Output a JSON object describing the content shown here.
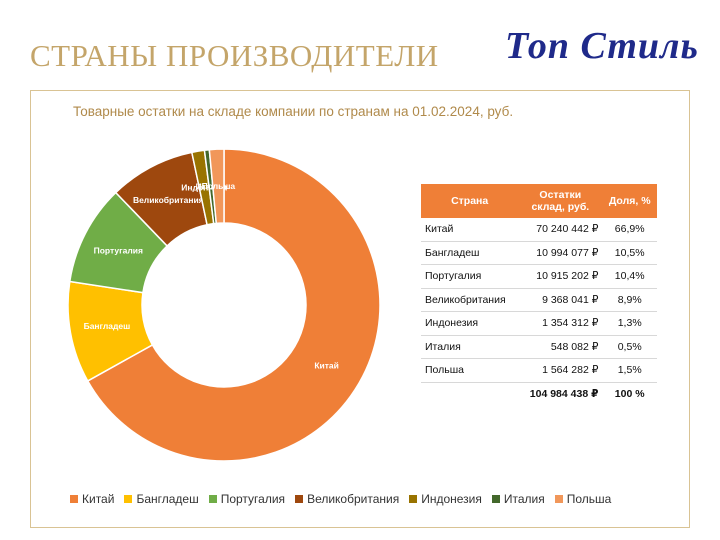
{
  "header": {
    "title": "СТРАНЫ  ПРОИЗВОДИТЕЛИ",
    "logo_text": "Топ Стиль"
  },
  "chart_data": {
    "type": "pie",
    "title": "Товарные остатки на складе компании по странам на 01.02.2024, руб.",
    "donut": true,
    "legend_position": "bottom",
    "slices": [
      {
        "label": "Китай",
        "value": 66.9,
        "color": "#ef7f37"
      },
      {
        "label": "Бангладеш",
        "value": 10.5,
        "color": "#ffc000"
      },
      {
        "label": "Португалия",
        "value": 10.4,
        "color": "#70ad47"
      },
      {
        "label": "Великобритания",
        "value": 8.9,
        "color": "#9e480e"
      },
      {
        "label": "Индонезия",
        "value": 1.3,
        "color": "#997300"
      },
      {
        "label": "Италия",
        "value": 0.5,
        "color": "#43682b"
      },
      {
        "label": "Польша",
        "value": 1.5,
        "color": "#f1975a"
      }
    ],
    "visual_degrees": [
      {
        "label": "Китай",
        "deg": 240.8
      },
      {
        "label": "Бангладеш",
        "deg": 37.8
      },
      {
        "label": "Португалия",
        "deg": 37.4
      },
      {
        "label": "Великобритания",
        "deg": 32.0
      },
      {
        "label": "Индонезия",
        "deg": 4.7
      },
      {
        "label": "Италия",
        "deg": 1.8
      },
      {
        "label": "Польша",
        "deg": 5.4
      }
    ]
  },
  "table": {
    "headers": {
      "country": "Страна",
      "amount_line1": "Остатки",
      "amount_line2": "склад, руб.",
      "share": "Доля, %"
    },
    "rows": [
      {
        "country": "Китай",
        "amount": "70 240 442 ₽",
        "share": "66,9%"
      },
      {
        "country": "Бангладеш",
        "amount": "10 994 077 ₽",
        "share": "10,5%"
      },
      {
        "country": "Португалия",
        "amount": "10 915 202 ₽",
        "share": "10,4%"
      },
      {
        "country": "Великобритания",
        "amount": "9 368 041 ₽",
        "share": "8,9%"
      },
      {
        "country": "Индонезия",
        "amount": "1 354 312 ₽",
        "share": "1,3%"
      },
      {
        "country": "Италия",
        "amount": "548 082 ₽",
        "share": "0,5%"
      },
      {
        "country": "Польша",
        "amount": "1 564 282 ₽",
        "share": "1,5%"
      }
    ],
    "total": {
      "amount": "104 984 438 ₽",
      "share": "100 %"
    }
  }
}
